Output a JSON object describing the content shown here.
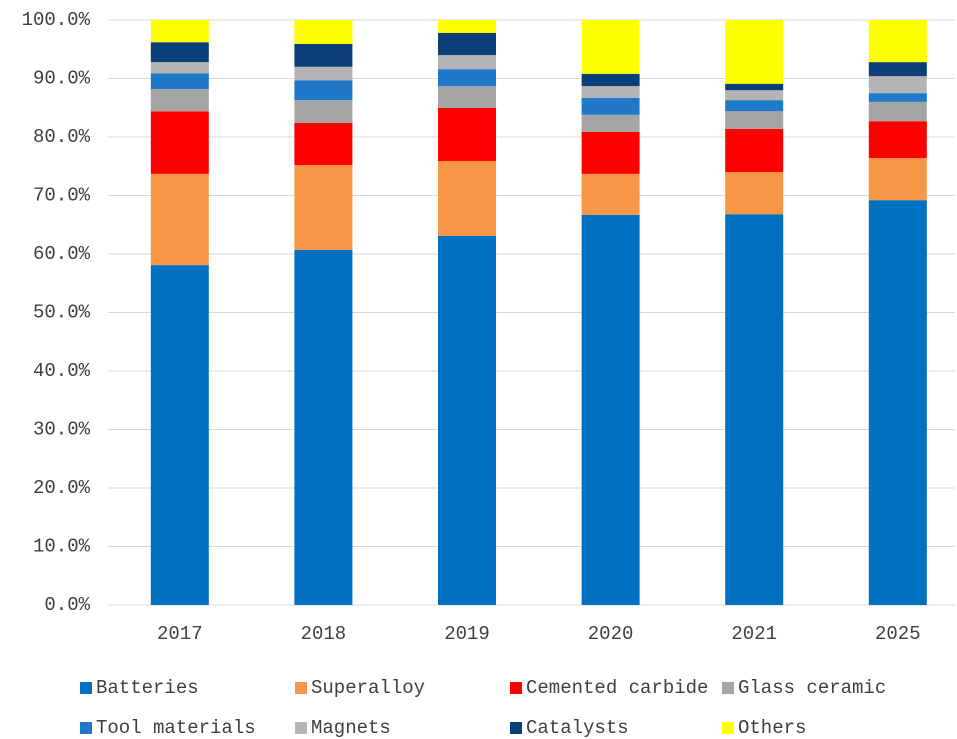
{
  "chart_data": {
    "type": "stacked_bar",
    "categories": [
      "2017",
      "2018",
      "2019",
      "2020",
      "2021",
      "2025"
    ],
    "series": [
      {
        "name": "Batteries",
        "color": "#0070c0",
        "values": [
          58.1,
          60.7,
          63.1,
          66.7,
          66.8,
          69.2
        ]
      },
      {
        "name": "Superalloy",
        "color": "#f79646",
        "values": [
          15.6,
          14.5,
          12.8,
          7.0,
          7.2,
          7.2
        ]
      },
      {
        "name": "Cemented carbide",
        "color": "#ff0000",
        "values": [
          10.7,
          7.2,
          9.1,
          7.2,
          7.4,
          6.3
        ]
      },
      {
        "name": "Glass ceramic",
        "color": "#a5a5a5",
        "values": [
          3.8,
          3.9,
          3.7,
          2.9,
          3.0,
          3.3
        ]
      },
      {
        "name": "Tool materials",
        "color": "#1f78c8",
        "values": [
          2.7,
          3.4,
          2.9,
          2.9,
          1.9,
          1.5
        ]
      },
      {
        "name": "Magnets",
        "color": "#b4b4b4",
        "values": [
          1.9,
          2.3,
          2.4,
          2.0,
          1.7,
          2.9
        ]
      },
      {
        "name": "Catalysts",
        "color": "#0b3f78",
        "values": [
          3.4,
          3.9,
          3.8,
          2.1,
          1.1,
          2.4
        ]
      },
      {
        "name": "Others",
        "color": "#ffff00",
        "values": [
          3.8,
          4.1,
          2.2,
          9.2,
          10.9,
          7.2
        ]
      }
    ],
    "ylim": [
      0,
      100
    ],
    "yticks": [
      {
        "value": 0,
        "label": "0.0%"
      },
      {
        "value": 10,
        "label": "10.0%"
      },
      {
        "value": 20,
        "label": "20.0%"
      },
      {
        "value": 30,
        "label": "30.0%"
      },
      {
        "value": 40,
        "label": "40.0%"
      },
      {
        "value": 50,
        "label": "50.0%"
      },
      {
        "value": 60,
        "label": "60.0%"
      },
      {
        "value": 70,
        "label": "70.0%"
      },
      {
        "value": 80,
        "label": "80.0%"
      },
      {
        "value": 90,
        "label": "90.0%"
      },
      {
        "value": 100,
        "label": "100.0%"
      }
    ],
    "grid": true,
    "legend": "bottom"
  }
}
